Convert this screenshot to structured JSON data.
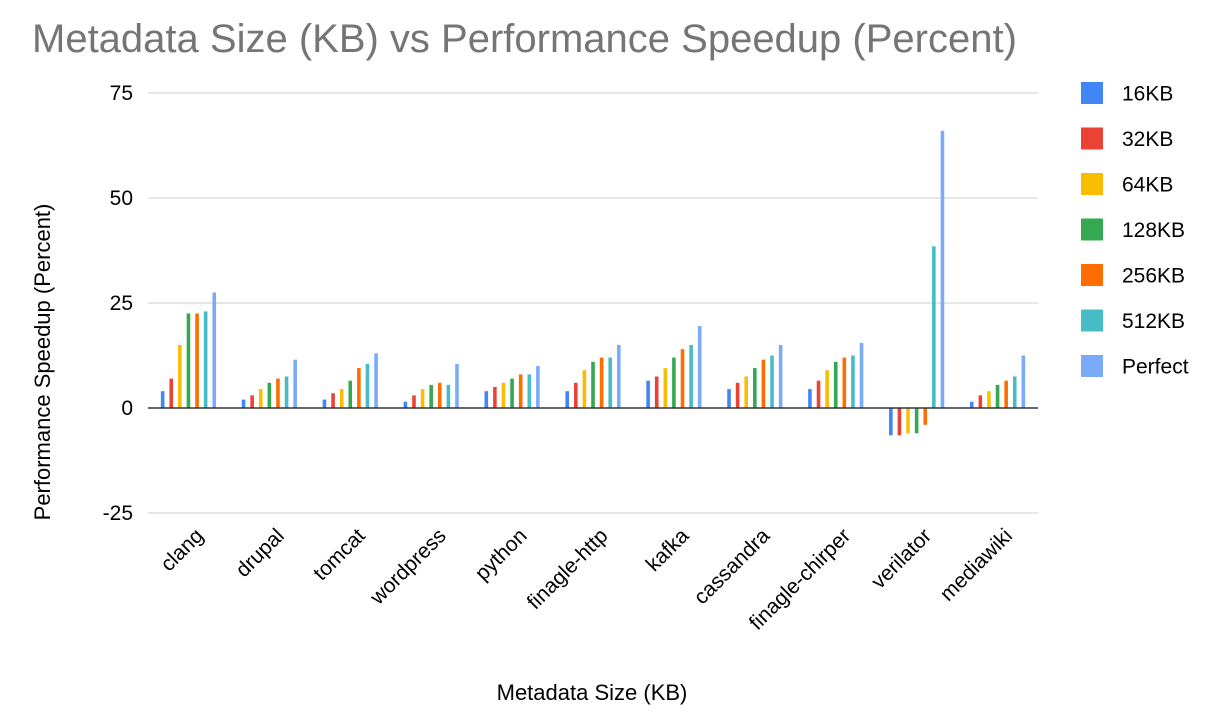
{
  "chart_data": {
    "type": "bar",
    "title": "Metadata Size (KB) vs Performance Speedup (Percent)",
    "xlabel": "Metadata Size (KB)",
    "ylabel": "Performance Speedup (Percent)",
    "ylim": [
      -25,
      75
    ],
    "yticks": [
      75,
      50,
      25,
      0,
      -25
    ],
    "grid": true,
    "legend_position": "right",
    "categories": [
      "clang",
      "drupal",
      "tomcat",
      "wordpress",
      "python",
      "finagle-http",
      "kafka",
      "cassandra",
      "finagle-chirper",
      "verilator",
      "mediawiki"
    ],
    "series": [
      {
        "name": "16KB",
        "color": "#4285f4",
        "values": [
          4,
          2,
          2,
          1.5,
          4,
          4,
          6.5,
          4.5,
          4.5,
          -6.5,
          1.5
        ]
      },
      {
        "name": "32KB",
        "color": "#ea4335",
        "values": [
          7,
          3,
          3.5,
          3,
          5,
          6,
          7.5,
          6,
          6.5,
          -6.5,
          3
        ]
      },
      {
        "name": "64KB",
        "color": "#fbbc04",
        "values": [
          15,
          4.5,
          4.5,
          4.5,
          6,
          9,
          9.5,
          7.5,
          9,
          -6,
          4
        ]
      },
      {
        "name": "128KB",
        "color": "#34a853",
        "values": [
          22.5,
          6,
          6.5,
          5.5,
          7,
          11,
          12,
          9.5,
          11,
          -6,
          5.5
        ]
      },
      {
        "name": "256KB",
        "color": "#ff6d01",
        "values": [
          22.5,
          7,
          9.5,
          6,
          8,
          12,
          14,
          11.5,
          12,
          -4,
          6.5
        ]
      },
      {
        "name": "512KB",
        "color": "#46bdc6",
        "values": [
          23,
          7.5,
          10.5,
          5.5,
          8,
          12,
          15,
          12.5,
          12.5,
          38.5,
          7.5
        ]
      },
      {
        "name": "Perfect",
        "color": "#7baaf7",
        "values": [
          27.5,
          11.5,
          13,
          10.5,
          10,
          15,
          19.5,
          15,
          15.5,
          66,
          12.5
        ]
      }
    ]
  }
}
